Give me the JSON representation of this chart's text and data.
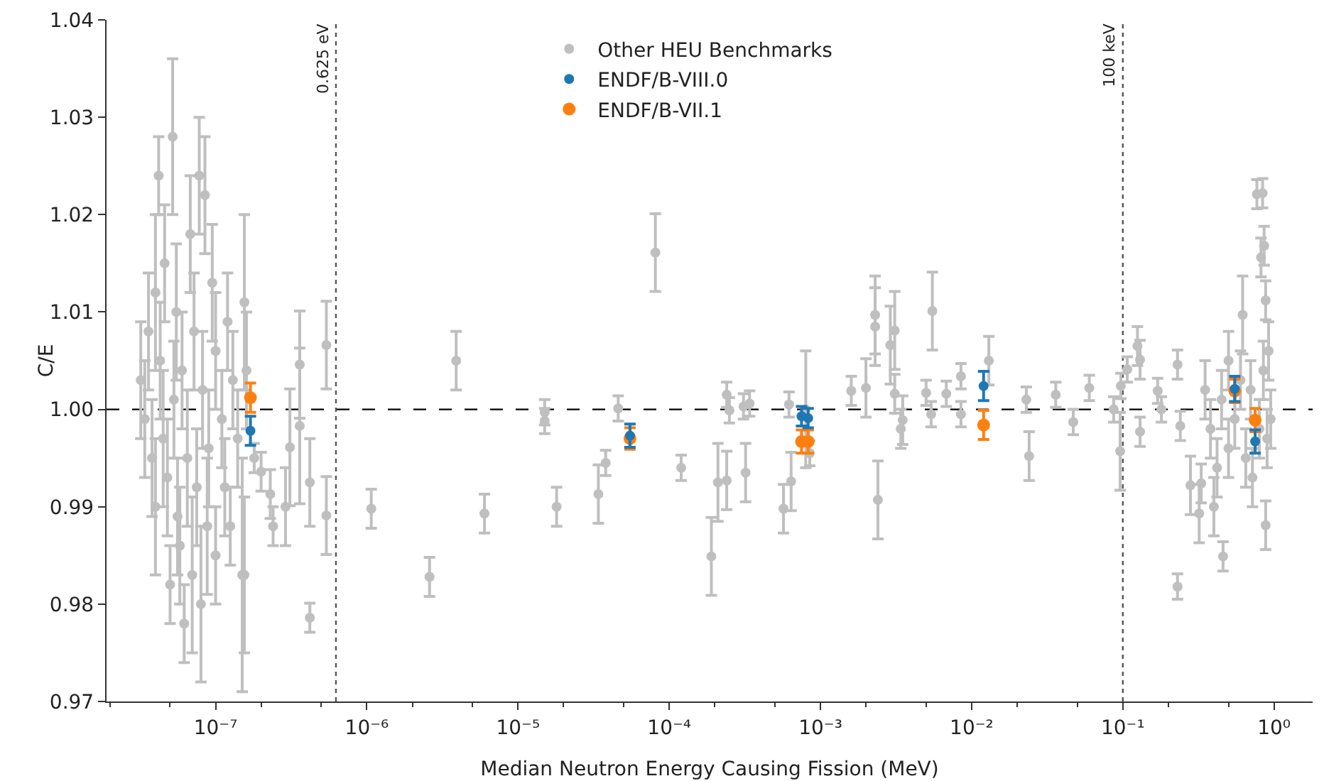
{
  "chart_data": {
    "type": "scatter",
    "xlabel": "Median Neutron Energy Causing Fission (MeV)",
    "ylabel": "C/E",
    "log": "x",
    "xlim": [
      1.9e-08,
      1.8
    ],
    "ylim": [
      0.97,
      1.04
    ],
    "xticks": [
      {
        "value": 1e-07,
        "label": "10⁻⁷"
      },
      {
        "value": 1e-06,
        "label": "10⁻⁶"
      },
      {
        "value": 1e-05,
        "label": "10⁻⁵"
      },
      {
        "value": 0.0001,
        "label": "10⁻⁴"
      },
      {
        "value": 0.001,
        "label": "10⁻³"
      },
      {
        "value": 0.01,
        "label": "10⁻²"
      },
      {
        "value": 0.1,
        "label": "10⁻¹"
      },
      {
        "value": 1,
        "label": "10⁰"
      }
    ],
    "yticks": [
      0.97,
      0.98,
      0.99,
      {
        "value": 1,
        "label": "1.00"
      },
      1.01,
      1.02,
      1.03,
      1.04
    ],
    "grid": false,
    "legend": "top",
    "marker": "circle",
    "ref_lines": [
      {
        "axis": "y",
        "value": 1,
        "color": "#000000",
        "line_style": "dashed"
      },
      {
        "axis": "x",
        "value": 6.25e-07,
        "label": "0.625 eV",
        "color": "#555555",
        "line_style": "dotted"
      },
      {
        "axis": "x",
        "value": 0.1,
        "label": "100 keV",
        "color": "#555555",
        "line_style": "dotted"
      }
    ],
    "series": [
      {
        "name": "Other HEU Benchmarks",
        "color": "#bfbfbf",
        "x": [
          3.2e-08,
          3.4e-08,
          3.6e-08,
          3.8e-08,
          4e-08,
          4e-08,
          4.2e-08,
          4.3e-08,
          4.5e-08,
          4.6e-08,
          4.8e-08,
          5e-08,
          5.2e-08,
          5.3e-08,
          5.5e-08,
          5.6e-08,
          5.8e-08,
          6e-08,
          6.2e-08,
          6.5e-08,
          6.8e-08,
          7e-08,
          7.2e-08,
          7.5e-08,
          7.8e-08,
          8e-08,
          8.2e-08,
          8.5e-08,
          8.8e-08,
          9e-08,
          9.5e-08,
          1e-07,
          1e-07,
          1.1e-07,
          1.15e-07,
          1.2e-07,
          1.25e-07,
          1.3e-07,
          1.4e-07,
          1.55e-07,
          1.55e-07,
          1.6e-07,
          1.5e-07,
          1.8e-07,
          2e-07,
          2.3e-07,
          2.4e-07,
          2.9e-07,
          3.1e-07,
          3.6e-07,
          3.6e-07,
          4.2e-07,
          4.2e-07,
          5.4e-07,
          5.4e-07,
          1.07e-06,
          2.6e-06,
          3.9e-06,
          6e-06,
          1.5e-05,
          1.5e-05,
          1.8e-05,
          3.4e-05,
          3.8e-05,
          4.6e-05,
          8.1e-05,
          0.00012,
          0.00019,
          0.00021,
          0.00024,
          0.00024,
          0.00025,
          0.00032,
          0.00031,
          0.00034,
          0.00057,
          0.00064,
          0.00062,
          0.0008,
          0.00085,
          0.0016,
          0.002,
          0.0023,
          0.0023,
          0.0024,
          0.0029,
          0.0031,
          0.0031,
          0.0034,
          0.0035,
          0.0055,
          0.005,
          0.0054,
          0.0068,
          0.0085,
          0.0085,
          0.013,
          0.023,
          0.024,
          0.036,
          0.047,
          0.06,
          0.087,
          0.096,
          0.097,
          0.107,
          0.125,
          0.13,
          0.13,
          0.17,
          0.18,
          0.23,
          0.24,
          0.23,
          0.28,
          0.32,
          0.33,
          0.4,
          0.46,
          0.62,
          0.77,
          0.84,
          0.86,
          0.82,
          0.88,
          0.88,
          0.45,
          0.5,
          0.55,
          0.6,
          0.65,
          0.7,
          0.72,
          0.8,
          0.85,
          0.9,
          0.92,
          0.95,
          0.5,
          0.42,
          0.38,
          0.35
        ],
        "values": [
          1.003,
          0.999,
          1.008,
          0.995,
          1.012,
          0.99,
          1.024,
          1.005,
          0.997,
          1.015,
          0.993,
          0.982,
          1.028,
          1.001,
          1.01,
          0.989,
          0.986,
          1.004,
          0.978,
          0.995,
          1.018,
          0.983,
          1.008,
          0.992,
          1.024,
          0.98,
          1.002,
          1.022,
          0.988,
          0.996,
          1.013,
          0.985,
          1.006,
          0.999,
          0.992,
          1.009,
          0.988,
          1.003,
          0.997,
          1.011,
          0.983,
          1.004,
          0.983,
          0.995,
          0.9936,
          0.9913,
          0.988,
          0.99,
          0.9961,
          1.0046,
          0.9983,
          0.9925,
          0.9786,
          1.0066,
          0.9891,
          0.9898,
          0.9828,
          1.005,
          0.9893,
          0.9997,
          0.9988,
          0.99,
          0.9913,
          0.9945,
          1.0001,
          1.0161,
          0.994,
          0.9849,
          0.9925,
          0.9927,
          1.0015,
          0.9999,
          0.9935,
          1.0003,
          1.0006,
          0.9898,
          0.9926,
          1.0005,
          1.0,
          0.9955,
          1.0019,
          1.0022,
          1.0097,
          1.0085,
          0.9907,
          1.0066,
          1.0081,
          1.0016,
          0.998,
          0.9989,
          1.0101,
          1.0017,
          0.9995,
          1.0016,
          1.0034,
          0.9995,
          1.005,
          1.001,
          0.9952,
          1.0015,
          0.9987,
          1.0022,
          1.0,
          0.9957,
          1.0024,
          1.0041,
          1.0065,
          1.0051,
          0.9977,
          1.0019,
          1.0,
          1.0046,
          0.9983,
          0.9818,
          0.9922,
          0.9893,
          0.9924,
          0.99,
          0.9849,
          1.0097,
          1.0221,
          1.0222,
          1.0168,
          1.0156,
          1.0112,
          0.9881,
          1.001,
          0.996,
          0.999,
          1.003,
          0.995,
          1.002,
          0.993,
          0.998,
          1.004,
          0.997,
          1.006,
          0.999,
          1.005,
          0.994,
          0.998,
          1.002
        ],
        "errors": [
          0.006,
          0.006,
          0.006,
          0.006,
          0.008,
          0.007,
          0.004,
          0.006,
          0.007,
          0.006,
          0.006,
          0.004,
          0.008,
          0.006,
          0.007,
          0.006,
          0.006,
          0.006,
          0.004,
          0.007,
          0.006,
          0.008,
          0.006,
          0.006,
          0.006,
          0.008,
          0.006,
          0.006,
          0.007,
          0.006,
          0.006,
          0.005,
          0.006,
          0.005,
          0.005,
          0.005,
          0.004,
          0.005,
          0.005,
          0.009,
          0.008,
          0.006,
          0.012,
          0.0015,
          0.002,
          0.0025,
          0.002,
          0.004,
          0.006,
          0.0055,
          0.008,
          0.0045,
          0.0015,
          0.0045,
          0.004,
          0.002,
          0.002,
          0.003,
          0.002,
          0.0013,
          0.0013,
          0.002,
          0.003,
          0.0013,
          0.0013,
          0.004,
          0.0013,
          0.004,
          0.004,
          0.003,
          0.0013,
          0.0013,
          0.003,
          0.0013,
          0.0013,
          0.0025,
          0.003,
          0.0013,
          0.006,
          0.0013,
          0.0015,
          0.003,
          0.004,
          0.004,
          0.004,
          0.004,
          0.004,
          0.002,
          0.002,
          0.0025,
          0.004,
          0.0013,
          0.0013,
          0.0013,
          0.0013,
          0.0013,
          0.0025,
          0.0013,
          0.0025,
          0.0013,
          0.0013,
          0.0013,
          0.0013,
          0.004,
          0.0013,
          0.0013,
          0.002,
          0.002,
          0.0015,
          0.0013,
          0.0013,
          0.0015,
          0.0015,
          0.0013,
          0.003,
          0.003,
          0.002,
          0.003,
          0.0015,
          0.004,
          0.0015,
          0.0015,
          0.002,
          0.002,
          0.002,
          0.0025,
          0.003,
          0.003,
          0.003,
          0.003,
          0.003,
          0.003,
          0.003,
          0.003,
          0.003,
          0.003,
          0.003,
          0.003,
          0.003,
          0.003,
          0.003,
          0.003
        ]
      },
      {
        "name": "ENDF/B-VIII.0",
        "color": "#1f77b4",
        "x": [
          1.7e-07,
          5.5e-05,
          0.00075,
          0.00083,
          0.012,
          0.55,
          0.75
        ],
        "values": [
          0.9978,
          0.9973,
          0.9993,
          0.9991,
          1.0024,
          1.0021,
          0.9967
        ],
        "errors": [
          0.0015,
          0.0012,
          0.001,
          0.001,
          0.0015,
          0.0013,
          0.0012
        ]
      },
      {
        "name": "ENDF/B-VII.1",
        "color": "#ff7f0e",
        "x": [
          1.7e-07,
          5.5e-05,
          0.00075,
          0.00083,
          0.012,
          0.55,
          0.75
        ],
        "values": [
          1.0012,
          0.997,
          0.9967,
          0.9967,
          0.9984,
          1.0019,
          0.9989
        ],
        "errors": [
          0.0015,
          0.0011,
          0.0012,
          0.0012,
          0.0015,
          0.0012,
          0.0012
        ]
      }
    ]
  }
}
